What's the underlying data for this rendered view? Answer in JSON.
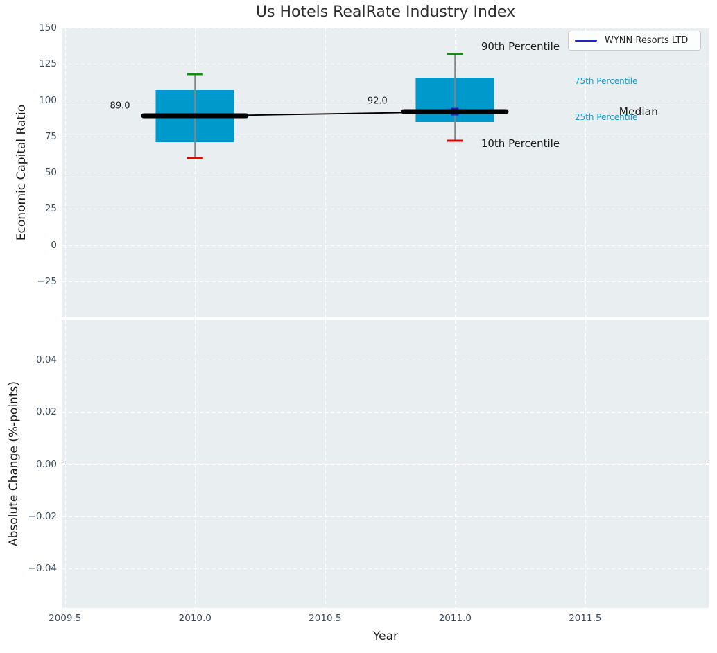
{
  "title": {
    "text": "Us Hotels RealRate Industry Index"
  },
  "colors": {
    "axes_background": "#e9eef0",
    "grid": "#ffffff",
    "box_fill": "#0099cc",
    "whisker": "#858585",
    "cap_top": "#0a930a",
    "cap_bottom": "#e60000",
    "median": "#000000",
    "trend_line": "#000000",
    "series_line": "#2121cd",
    "tick_label": "#3a4a5e",
    "annotation_blue": "#179bd7",
    "annotation_black": "#1a1a1a",
    "zero_line": "#000000"
  },
  "chart_data": [
    {
      "type": "bar",
      "subtype": "percentile-box-timeseries",
      "title": "Us Hotels RealRate Industry Index",
      "ylabel": "Economic Capital Ratio",
      "xlabel": "",
      "xlim": [
        2009.49,
        2011.975
      ],
      "ylim": [
        -50,
        150
      ],
      "grid": true,
      "xticks": {
        "values": [
          2009.5,
          2010.0,
          2010.5,
          2011.0,
          2011.5
        ],
        "labels": []
      },
      "yticks": {
        "values": [
          150,
          125,
          100,
          75,
          50,
          25,
          0,
          -25
        ],
        "labels": [
          "150",
          "125",
          "100",
          "75",
          "50",
          "25",
          "0",
          "−25"
        ]
      },
      "legend": {
        "label": "WYNN Resorts LTD",
        "position": "upper right"
      },
      "categories": [
        2010,
        2011
      ],
      "boxes": [
        {
          "x": 2010,
          "p10": 60,
          "p25": 71,
          "median": 89,
          "p75": 107,
          "p90": 118,
          "median_label": "89.0"
        },
        {
          "x": 2011,
          "p10": 72,
          "p25": 85,
          "median": 92,
          "p75": 115.5,
          "p90": 132,
          "median_label": "92.0"
        }
      ],
      "series": [
        {
          "name": "WYNN Resorts LTD",
          "x": [
            2010,
            2011
          ],
          "y": [
            89,
            92
          ]
        }
      ],
      "annotations": [
        {
          "text": "90th Percentile",
          "x": 2011.1,
          "y": 137.0,
          "color": "#1a1a1a",
          "size": 15,
          "anchor": "left"
        },
        {
          "text": "75th Percentile",
          "x": 2011.46,
          "y": 113.0,
          "color": "#179bd7",
          "size": 12,
          "anchor": "left"
        },
        {
          "text": "Median",
          "x": 2011.63,
          "y": 92.0,
          "color": "#1a1a1a",
          "size": 15.5,
          "anchor": "left"
        },
        {
          "text": "25th Percentile",
          "x": 2011.46,
          "y": 88.3,
          "color": "#179bd7",
          "size": 12,
          "anchor": "left"
        },
        {
          "text": "10th Percentile",
          "x": 2011.1,
          "y": 70.0,
          "color": "#1a1a1a",
          "size": 15,
          "anchor": "left"
        },
        {
          "text": "89.0",
          "x": 2009.75,
          "y": 96.0,
          "color": "#1a1a1a",
          "size": 13,
          "anchor": "right"
        },
        {
          "text": "92.0",
          "x": 2010.74,
          "y": 99.5,
          "color": "#1a1a1a",
          "size": 13,
          "anchor": "right"
        }
      ]
    },
    {
      "type": "line",
      "title": "",
      "ylabel": "Absolute Change (%-points)",
      "xlabel": "Year",
      "xlim": [
        2009.49,
        2011.975
      ],
      "ylim": [
        -0.0552,
        0.0552
      ],
      "grid": true,
      "xticks": {
        "values": [
          2009.5,
          2010.0,
          2010.5,
          2011.0,
          2011.5
        ],
        "labels": [
          "2009.5",
          "2010.0",
          "2010.5",
          "2011.0",
          "2011.5"
        ]
      },
      "yticks": {
        "values": [
          0.04,
          0.02,
          0.0,
          -0.02,
          -0.04
        ],
        "labels": [
          "0.04",
          "0.02",
          "0.00",
          "−0.02",
          "−0.04"
        ]
      },
      "zero_line": 0.0,
      "series": []
    }
  ]
}
